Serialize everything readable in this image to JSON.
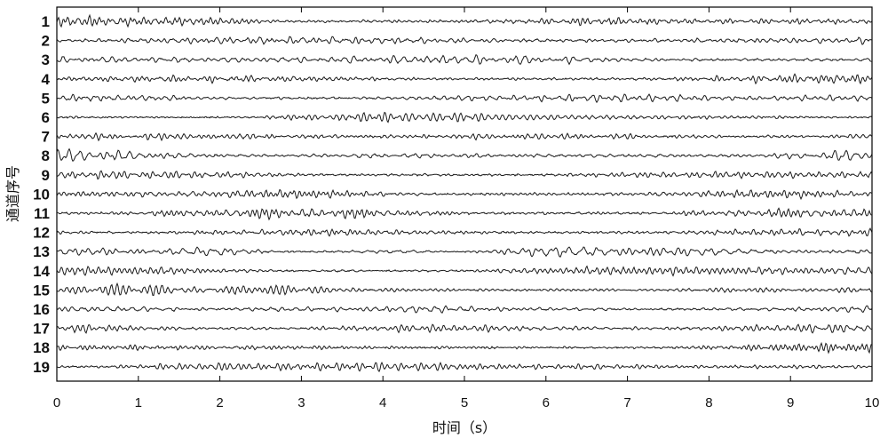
{
  "chart_data": {
    "type": "line",
    "title": "",
    "xlabel": "时间（s）",
    "ylabel": "通道序号",
    "xlim": [
      0,
      10
    ],
    "x_ticks": [
      "0",
      "1",
      "2",
      "3",
      "4",
      "5",
      "6",
      "7",
      "8",
      "9",
      "10"
    ],
    "grid": false,
    "legend": "none",
    "line_color": "#1a1a1a",
    "channels": [
      "1",
      "2",
      "3",
      "4",
      "5",
      "6",
      "7",
      "8",
      "9",
      "10",
      "11",
      "12",
      "13",
      "14",
      "15",
      "16",
      "17",
      "18",
      "19"
    ],
    "sample_rate_note": "",
    "series": []
  }
}
